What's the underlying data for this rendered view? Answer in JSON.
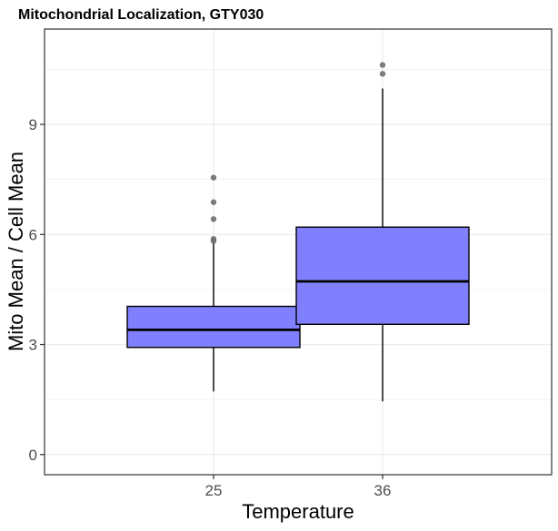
{
  "chart_data": {
    "type": "box",
    "title": "Mitochondrial Localization, GTY030",
    "xlabel": "Temperature",
    "ylabel": "Mito Mean / Cell Mean",
    "categories": [
      "25",
      "36"
    ],
    "ylim": [
      -0.55,
      11.6
    ],
    "yticks": [
      0,
      3,
      6,
      9
    ],
    "grid": true,
    "legend": "none",
    "boxes": [
      {
        "category": "25",
        "whisker_low": 1.72,
        "q1": 2.92,
        "median": 3.4,
        "q3": 4.04,
        "whisker_high": 5.78,
        "outliers": [
          5.82,
          5.88,
          6.42,
          6.88,
          7.55
        ]
      },
      {
        "category": "36",
        "whisker_low": 1.45,
        "q1": 3.55,
        "median": 4.72,
        "q3": 6.2,
        "whisker_high": 9.98,
        "outliers": [
          10.38,
          10.62
        ]
      }
    ],
    "colors": {
      "box_fill": "#8080ff",
      "box_stroke": "#000000",
      "outlier": "#6e6e6e",
      "grid": "#ebebeb",
      "panel_border": "#333333"
    }
  }
}
